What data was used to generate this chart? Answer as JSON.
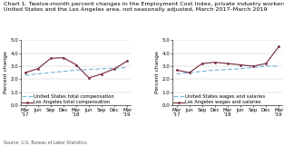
{
  "title": "Chart 1. Twelve-month percent changes in the Employment Cost Index, private industry workers,\nUnited States and the Los Angeles area, not seasonally adjusted, March 2017–March 2019",
  "source": "Source: U.S. Bureau of Labor Statistics.",
  "x_labels": [
    "Mar\n'17",
    "Jun",
    "Sep",
    "Dec",
    "Mar\n'18",
    "Jun",
    "Sep",
    "Dec",
    "Mar\n'19"
  ],
  "x_ticks": [
    0,
    1,
    2,
    3,
    4,
    5,
    6,
    7,
    8
  ],
  "ylim": [
    0.0,
    5.0
  ],
  "yticks": [
    0.0,
    1.0,
    2.0,
    3.0,
    4.0,
    5.0
  ],
  "ylabel": "Percent change",
  "left_us": [
    2.3,
    2.4,
    2.5,
    2.6,
    2.7,
    2.75,
    2.8,
    2.85,
    2.9
  ],
  "left_la": [
    2.5,
    2.8,
    3.6,
    3.65,
    3.1,
    2.1,
    2.4,
    2.8,
    3.4
  ],
  "right_us": [
    2.4,
    2.5,
    2.6,
    2.7,
    2.75,
    2.8,
    2.9,
    3.0,
    3.0
  ],
  "right_la": [
    2.7,
    2.5,
    3.2,
    3.3,
    3.2,
    3.1,
    3.0,
    3.2,
    4.5
  ],
  "left_legend_us": "United States total compensation",
  "left_legend_la": "Los Angeles total compensation",
  "right_legend_us": "United States wages and salaries",
  "right_legend_la": "Los Angeles wages and salaries",
  "us_color": "#7ab6d9",
  "la_color": "#7b3045",
  "linewidth": 0.85,
  "title_fontsize": 4.6,
  "label_fontsize": 4.3,
  "tick_fontsize": 4.0,
  "legend_fontsize": 3.8,
  "source_fontsize": 3.4
}
